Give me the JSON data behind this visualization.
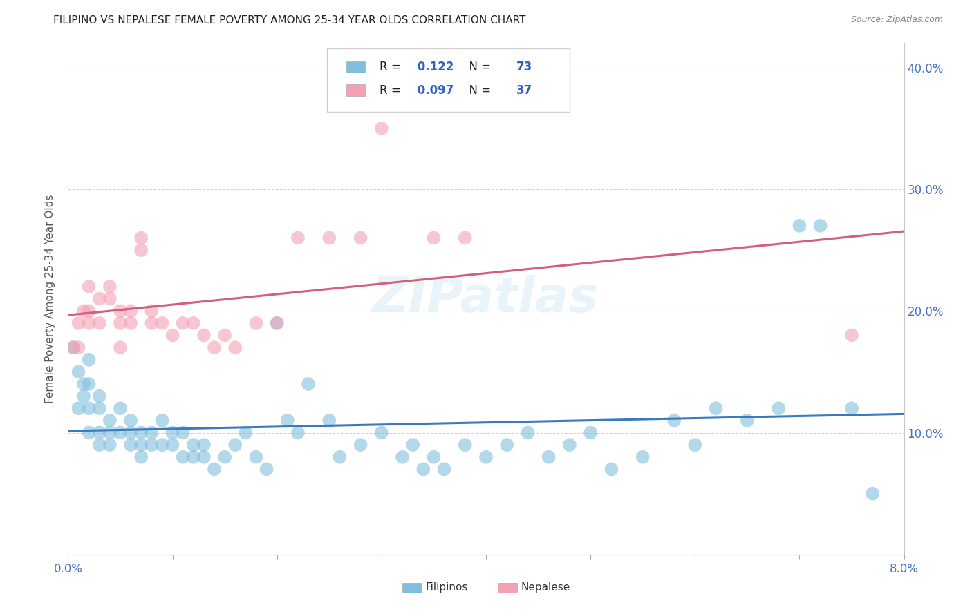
{
  "title": "FILIPINO VS NEPALESE FEMALE POVERTY AMONG 25-34 YEAR OLDS CORRELATION CHART",
  "source": "Source: ZipAtlas.com",
  "ylabel": "Female Poverty Among 25-34 Year Olds",
  "right_yticks": [
    0.1,
    0.2,
    0.3,
    0.4
  ],
  "watermark": "ZIPatlas",
  "legend1_R": "0.122",
  "legend1_N": "73",
  "legend2_R": "0.097",
  "legend2_N": "37",
  "blue_color": "#7fbfdd",
  "pink_color": "#f4a0b5",
  "blue_line_color": "#3a7abf",
  "pink_line_color": "#d45f7a",
  "filipinos_x": [
    0.0005,
    0.001,
    0.001,
    0.0015,
    0.0015,
    0.002,
    0.002,
    0.002,
    0.002,
    0.003,
    0.003,
    0.003,
    0.003,
    0.004,
    0.004,
    0.004,
    0.005,
    0.005,
    0.006,
    0.006,
    0.006,
    0.007,
    0.007,
    0.007,
    0.008,
    0.008,
    0.009,
    0.009,
    0.01,
    0.01,
    0.011,
    0.011,
    0.012,
    0.012,
    0.013,
    0.013,
    0.014,
    0.015,
    0.016,
    0.017,
    0.018,
    0.019,
    0.02,
    0.021,
    0.022,
    0.023,
    0.025,
    0.026,
    0.028,
    0.03,
    0.032,
    0.033,
    0.034,
    0.035,
    0.036,
    0.038,
    0.04,
    0.042,
    0.044,
    0.046,
    0.048,
    0.05,
    0.052,
    0.055,
    0.058,
    0.06,
    0.062,
    0.065,
    0.068,
    0.07,
    0.072,
    0.075,
    0.077
  ],
  "filipinos_y": [
    0.17,
    0.15,
    0.12,
    0.14,
    0.13,
    0.16,
    0.14,
    0.12,
    0.1,
    0.13,
    0.12,
    0.1,
    0.09,
    0.11,
    0.1,
    0.09,
    0.12,
    0.1,
    0.11,
    0.1,
    0.09,
    0.1,
    0.09,
    0.08,
    0.1,
    0.09,
    0.11,
    0.09,
    0.1,
    0.09,
    0.1,
    0.08,
    0.09,
    0.08,
    0.09,
    0.08,
    0.07,
    0.08,
    0.09,
    0.1,
    0.08,
    0.07,
    0.19,
    0.11,
    0.1,
    0.14,
    0.11,
    0.08,
    0.09,
    0.1,
    0.08,
    0.09,
    0.07,
    0.08,
    0.07,
    0.09,
    0.08,
    0.09,
    0.1,
    0.08,
    0.09,
    0.1,
    0.07,
    0.08,
    0.11,
    0.09,
    0.12,
    0.11,
    0.12,
    0.27,
    0.27,
    0.12,
    0.05
  ],
  "nepalese_x": [
    0.0005,
    0.001,
    0.001,
    0.0015,
    0.002,
    0.002,
    0.002,
    0.003,
    0.003,
    0.004,
    0.004,
    0.005,
    0.005,
    0.005,
    0.006,
    0.006,
    0.007,
    0.007,
    0.008,
    0.008,
    0.009,
    0.01,
    0.011,
    0.012,
    0.013,
    0.014,
    0.015,
    0.016,
    0.018,
    0.02,
    0.022,
    0.025,
    0.028,
    0.03,
    0.035,
    0.038,
    0.075
  ],
  "nepalese_y": [
    0.17,
    0.19,
    0.17,
    0.2,
    0.22,
    0.2,
    0.19,
    0.21,
    0.19,
    0.22,
    0.21,
    0.2,
    0.19,
    0.17,
    0.2,
    0.19,
    0.26,
    0.25,
    0.2,
    0.19,
    0.19,
    0.18,
    0.19,
    0.19,
    0.18,
    0.17,
    0.18,
    0.17,
    0.19,
    0.19,
    0.26,
    0.26,
    0.26,
    0.35,
    0.26,
    0.26,
    0.18
  ],
  "xmin": 0.0,
  "xmax": 0.08,
  "ymin": 0.0,
  "ymax": 0.42
}
